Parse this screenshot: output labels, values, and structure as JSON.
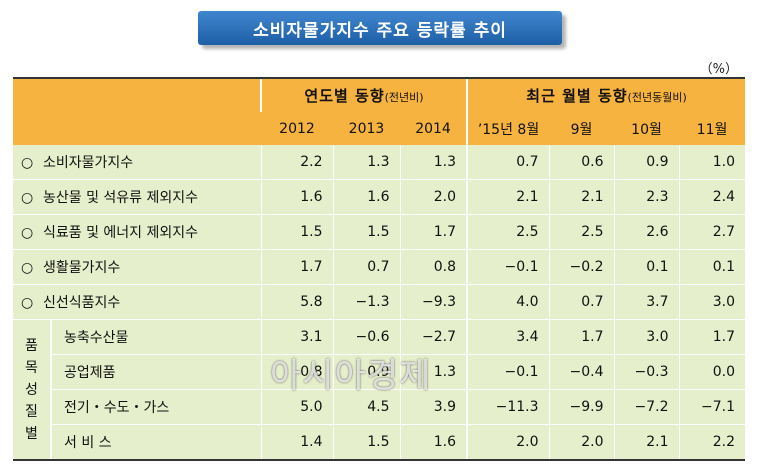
{
  "title": "소비자물가지수 주요 등락률 추이",
  "unit": "（%）",
  "headers": {
    "annual_group": "연도별 동향",
    "annual_sub": "(전년비)",
    "monthly_group": "최근 월별 동향",
    "monthly_sub": "(전년동월비)",
    "columns": [
      "2012",
      "2013",
      "2014",
      "’15년 8월",
      "9월",
      "10월",
      "11월"
    ]
  },
  "bullet": "○",
  "rows": [
    {
      "label": "소비자물가지수",
      "values": [
        "2.2",
        "1.3",
        "1.3",
        "0.7",
        "0.6",
        "0.9",
        "1.0"
      ]
    },
    {
      "label": "농산물 및 석유류 제외지수",
      "values": [
        "1.6",
        "1.6",
        "2.0",
        "2.1",
        "2.1",
        "2.3",
        "2.4"
      ]
    },
    {
      "label": "식료품 및 에너지 제외지수",
      "values": [
        "1.5",
        "1.5",
        "1.7",
        "2.5",
        "2.5",
        "2.6",
        "2.7"
      ]
    },
    {
      "label": "생활물가지수",
      "values": [
        "1.7",
        "0.7",
        "0.8",
        "−0.1",
        "−0.2",
        "0.1",
        "0.1"
      ]
    },
    {
      "label": "신선식품지수",
      "values": [
        "5.8",
        "−1.3",
        "−9.3",
        "4.0",
        "0.7",
        "3.7",
        "3.0"
      ]
    }
  ],
  "group_label": [
    "품",
    "목",
    "성",
    "질",
    "별"
  ],
  "group_rows": [
    {
      "label": "농축수산물",
      "values": [
        "3.1",
        "−0.6",
        "−2.7",
        "3.4",
        "1.7",
        "3.0",
        "1.7"
      ]
    },
    {
      "label": "공업제품",
      "values": [
        "0.8",
        "0.9",
        "1.3",
        "−0.1",
        "−0.4",
        "−0.3",
        "0.0"
      ]
    },
    {
      "label": "전기・수도・가스",
      "values": [
        "5.0",
        "4.5",
        "3.9",
        "−11.3",
        "−9.9",
        "−7.2",
        "−7.1"
      ]
    },
    {
      "label": "서 비 스",
      "values": [
        "1.4",
        "1.5",
        "1.6",
        "2.0",
        "2.0",
        "2.1",
        "2.2"
      ]
    }
  ],
  "watermark": "아시아경제",
  "colors": {
    "header": "#f6b33f",
    "body": "#e6efcb",
    "title_bg": "#2a6db8"
  }
}
